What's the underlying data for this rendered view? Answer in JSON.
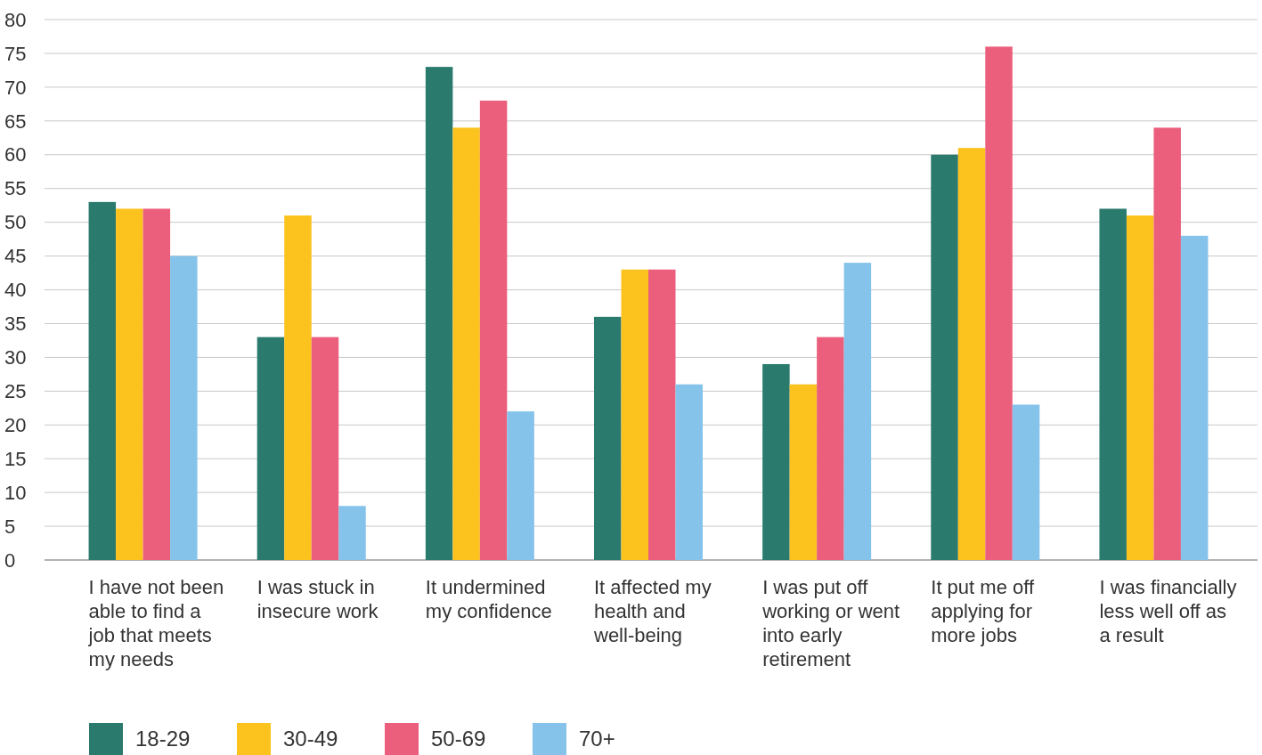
{
  "chart_data": {
    "type": "bar",
    "categories": [
      "I have not been able to find a job that meets my needs",
      "I was stuck in insecure work",
      "It undermined my confidence",
      "It affected my health and well-being",
      "I was put off working or went into early retirement",
      "It put me off applying for more jobs",
      "I was financially less well off as a result"
    ],
    "series": [
      {
        "name": "18-29",
        "color": "#2a7a6e",
        "values": [
          53,
          33,
          73,
          36,
          29,
          60,
          52
        ]
      },
      {
        "name": "30-49",
        "color": "#fcc21e",
        "values": [
          52,
          51,
          64,
          43,
          26,
          61,
          51
        ]
      },
      {
        "name": "50-69",
        "color": "#eb5f7c",
        "values": [
          52,
          33,
          68,
          43,
          33,
          76,
          64
        ]
      },
      {
        "name": "70+",
        "color": "#85c3ea",
        "values": [
          45,
          8,
          22,
          26,
          44,
          23,
          48
        ]
      }
    ],
    "ylim": [
      0,
      80
    ],
    "yticks": [
      0,
      5,
      10,
      15,
      20,
      25,
      30,
      35,
      40,
      45,
      50,
      55,
      60,
      65,
      70,
      75,
      80
    ],
    "grid": "y",
    "legend": "bottom"
  }
}
